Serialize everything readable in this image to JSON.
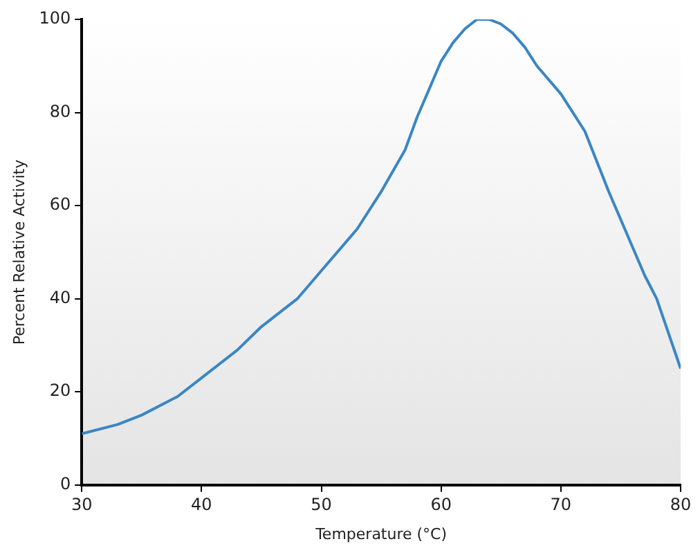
{
  "chart_data": {
    "type": "line",
    "xlabel": "Temperature (°C)",
    "ylabel": "Percent Relative Activity",
    "x": [
      30,
      33,
      35,
      38,
      40,
      43,
      45,
      48,
      50,
      53,
      55,
      57,
      58,
      59,
      60,
      61,
      62,
      63,
      64,
      65,
      66,
      67,
      68,
      70,
      72,
      74,
      75,
      77,
      78,
      80
    ],
    "series": [
      {
        "color": "#3a86c4",
        "values": [
          11,
          13,
          15,
          19,
          23,
          29,
          34,
          40,
          46,
          55,
          63,
          72,
          79,
          85,
          91,
          95,
          98,
          100,
          100,
          99,
          97,
          94,
          90,
          84,
          76,
          63,
          57,
          45,
          40,
          25
        ]
      }
    ],
    "xlim": [
      30,
      80
    ],
    "xticks": [
      30,
      40,
      50,
      60,
      70,
      80
    ],
    "ylim": [
      0,
      100
    ],
    "yticks": [
      0,
      20,
      40,
      60,
      80,
      100
    ],
    "grid": false,
    "legend": false,
    "marker": "none",
    "line_style": "solid"
  }
}
